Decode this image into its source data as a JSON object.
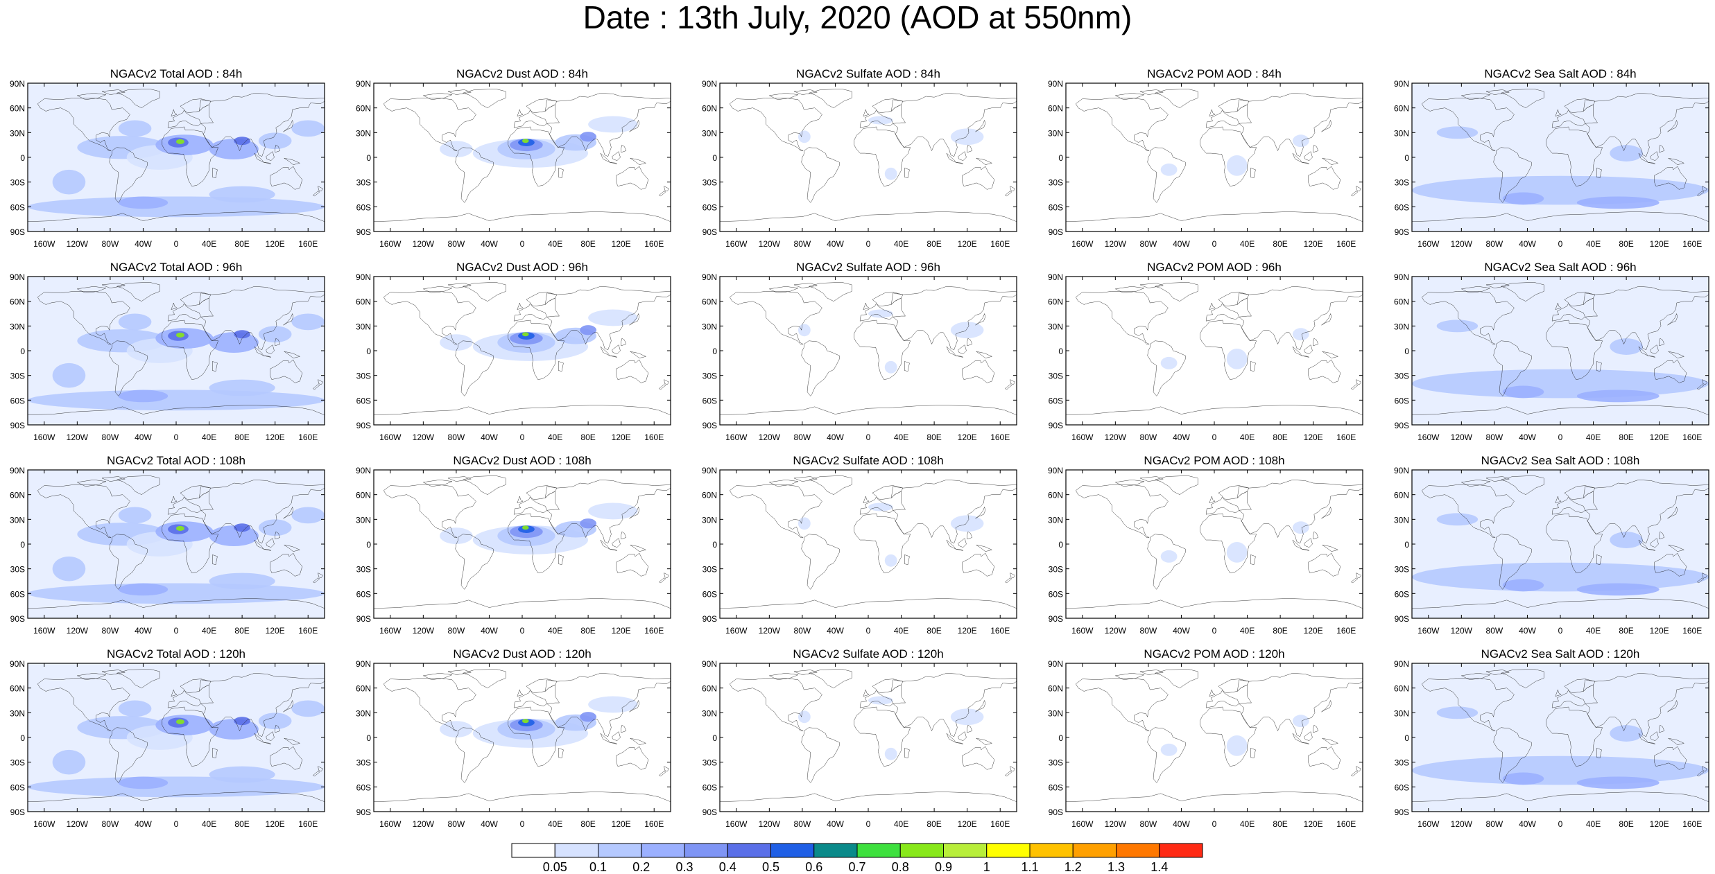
{
  "title": "Date : 13th July, 2020 (AOD at 550nm)",
  "panel_titles": [
    [
      "NGACv2 Total AOD : 84h",
      "NGACv2 Dust AOD : 84h",
      "NGACv2 Sulfate AOD : 84h",
      "NGACv2 POM AOD : 84h",
      "NGACv2 Sea Salt AOD : 84h"
    ],
    [
      "NGACv2 Total AOD : 96h",
      "NGACv2 Dust AOD : 96h",
      "NGACv2 Sulfate AOD : 96h",
      "NGACv2 POM AOD : 96h",
      "NGACv2 Sea Salt AOD : 96h"
    ],
    [
      "NGACv2 Total AOD : 108h",
      "NGACv2 Dust AOD : 108h",
      "NGACv2 Sulfate AOD : 108h",
      "NGACv2 POM AOD : 108h",
      "NGACv2 Sea Salt AOD : 108h"
    ],
    [
      "NGACv2 Total AOD : 120h",
      "NGACv2 Dust AOD : 120h",
      "NGACv2 Sulfate AOD : 120h",
      "NGACv2 POM AOD : 120h",
      "NGACv2 Sea Salt  AOD : 120h"
    ]
  ],
  "lat_ticks": [
    "90N",
    "60N",
    "30N",
    "0",
    "30S",
    "60S",
    "90S"
  ],
  "lon_ticks": [
    "160W",
    "120W",
    "80W",
    "40W",
    "0",
    "40E",
    "80E",
    "120E",
    "160E"
  ],
  "colorbar": {
    "labels": [
      "0.05",
      "0.1",
      "0.2",
      "0.3",
      "0.4",
      "0.5",
      "0.6",
      "0.7",
      "0.8",
      "0.9",
      "1",
      "1.1",
      "1.2",
      "1.3",
      "1.4"
    ],
    "colors": [
      "#ffffff",
      "#d6e2ff",
      "#b5c9ff",
      "#9bb0ff",
      "#7f95f5",
      "#5a6fe8",
      "#1f5fe6",
      "#0a8a8a",
      "#3ee03e",
      "#88e81a",
      "#b8ee3a",
      "#ffff00",
      "#ffc200",
      "#ffa000",
      "#ff7800",
      "#ff2a14"
    ]
  }
}
